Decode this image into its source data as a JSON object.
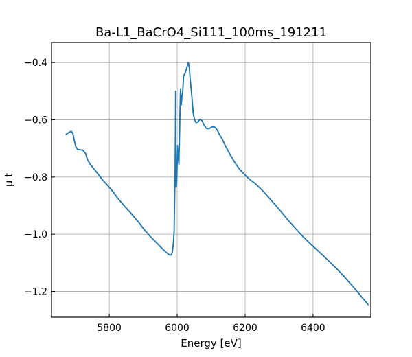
{
  "chart_data": {
    "type": "line",
    "title": "Ba-L1_BaCrO4_Si111_100ms_191211",
    "xlabel": "Energy [eV]",
    "ylabel": "μ t",
    "xlim": [
      5630,
      6570
    ],
    "ylim": [
      -1.29,
      -0.33
    ],
    "x_ticks": [
      5800,
      6000,
      6200,
      6400
    ],
    "y_ticks": [
      -0.4,
      -0.6,
      -0.8,
      -1.0,
      -1.2
    ],
    "x_tick_labels": [
      "5800",
      "6000",
      "6200",
      "6400"
    ],
    "y_tick_labels": [
      "−0.4",
      "−0.6",
      "−0.8",
      "−1.0",
      "−1.2"
    ],
    "grid": true,
    "series": [
      {
        "color": "#1f77b4",
        "points": [
          [
            5673,
            -0.651
          ],
          [
            5680,
            -0.645
          ],
          [
            5688,
            -0.64
          ],
          [
            5693,
            -0.648
          ],
          [
            5697,
            -0.672
          ],
          [
            5702,
            -0.695
          ],
          [
            5707,
            -0.704
          ],
          [
            5715,
            -0.705
          ],
          [
            5722,
            -0.706
          ],
          [
            5730,
            -0.717
          ],
          [
            5737,
            -0.742
          ],
          [
            5745,
            -0.757
          ],
          [
            5755,
            -0.772
          ],
          [
            5767,
            -0.789
          ],
          [
            5780,
            -0.81
          ],
          [
            5795,
            -0.829
          ],
          [
            5810,
            -0.85
          ],
          [
            5825,
            -0.874
          ],
          [
            5845,
            -0.902
          ],
          [
            5865,
            -0.928
          ],
          [
            5885,
            -0.956
          ],
          [
            5905,
            -0.987
          ],
          [
            5925,
            -1.013
          ],
          [
            5945,
            -1.037
          ],
          [
            5960,
            -1.055
          ],
          [
            5970,
            -1.066
          ],
          [
            5978,
            -1.073
          ],
          [
            5983,
            -1.072
          ],
          [
            5986,
            -1.06
          ],
          [
            5989,
            -1.03
          ],
          [
            5991,
            -0.99
          ],
          [
            5993,
            -0.84
          ],
          [
            5994,
            -0.77
          ],
          [
            5995,
            -0.62
          ],
          [
            5995.5,
            -0.5
          ],
          [
            5996,
            -0.7
          ],
          [
            5997,
            -0.835
          ],
          [
            5999,
            -0.8
          ],
          [
            6001,
            -0.69
          ],
          [
            6003,
            -0.72
          ],
          [
            6005,
            -0.755
          ],
          [
            6007,
            -0.65
          ],
          [
            6009,
            -0.53
          ],
          [
            6010,
            -0.492
          ],
          [
            6012,
            -0.548
          ],
          [
            6014,
            -0.52
          ],
          [
            6016,
            -0.506
          ],
          [
            6019,
            -0.447
          ],
          [
            6023,
            -0.438
          ],
          [
            6026,
            -0.427
          ],
          [
            6030,
            -0.411
          ],
          [
            6033,
            -0.4
          ],
          [
            6036,
            -0.42
          ],
          [
            6038,
            -0.455
          ],
          [
            6041,
            -0.49
          ],
          [
            6044,
            -0.53
          ],
          [
            6047,
            -0.575
          ],
          [
            6051,
            -0.6
          ],
          [
            6056,
            -0.61
          ],
          [
            6062,
            -0.606
          ],
          [
            6067,
            -0.598
          ],
          [
            6073,
            -0.603
          ],
          [
            6080,
            -0.62
          ],
          [
            6086,
            -0.63
          ],
          [
            6094,
            -0.631
          ],
          [
            6101,
            -0.626
          ],
          [
            6107,
            -0.624
          ],
          [
            6112,
            -0.627
          ],
          [
            6118,
            -0.636
          ],
          [
            6124,
            -0.651
          ],
          [
            6132,
            -0.666
          ],
          [
            6142,
            -0.691
          ],
          [
            6155,
            -0.72
          ],
          [
            6170,
            -0.75
          ],
          [
            6185,
            -0.775
          ],
          [
            6200,
            -0.793
          ],
          [
            6215,
            -0.81
          ],
          [
            6230,
            -0.823
          ],
          [
            6250,
            -0.846
          ],
          [
            6270,
            -0.872
          ],
          [
            6290,
            -0.899
          ],
          [
            6310,
            -0.927
          ],
          [
            6330,
            -0.956
          ],
          [
            6350,
            -0.982
          ],
          [
            6370,
            -1.008
          ],
          [
            6390,
            -1.031
          ],
          [
            6410,
            -1.053
          ],
          [
            6430,
            -1.075
          ],
          [
            6450,
            -1.098
          ],
          [
            6470,
            -1.121
          ],
          [
            6490,
            -1.146
          ],
          [
            6505,
            -1.166
          ],
          [
            6520,
            -1.186
          ],
          [
            6533,
            -1.205
          ],
          [
            6545,
            -1.222
          ],
          [
            6556,
            -1.237
          ],
          [
            6562,
            -1.246
          ]
        ]
      }
    ]
  }
}
